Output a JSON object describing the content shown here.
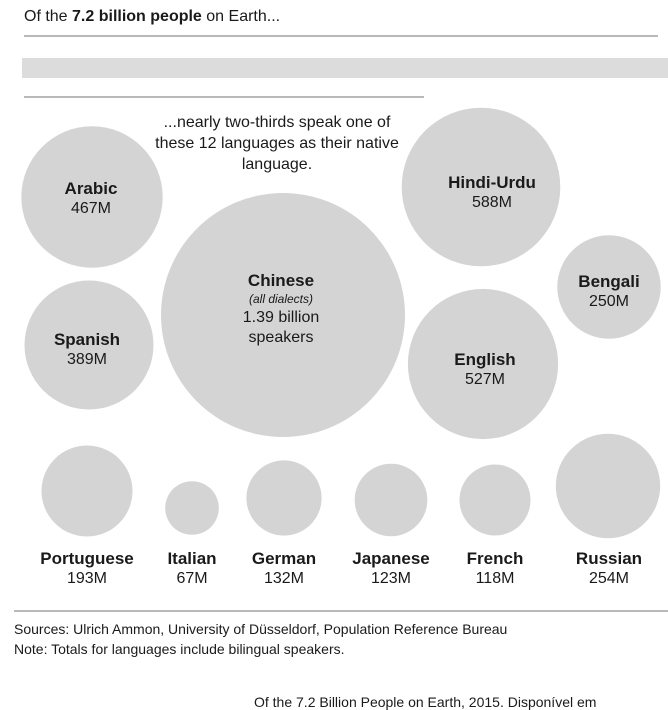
{
  "header": {
    "prefix": "Of the ",
    "highlight": "7.2 billion people",
    "suffix": " on Earth..."
  },
  "subhead": "...nearly two-thirds speak one of these 12 languages as their native language.",
  "colors": {
    "bubble": "#d4d4d4",
    "rule": "#b9b9b9",
    "band": "#dcdcdc",
    "text": "#1a1a1a"
  },
  "chart_data": {
    "type": "bubble",
    "title": "Of the 7.2 billion people on Earth...",
    "subtitle": "...nearly two-thirds speak one of these 12 languages as their native language.",
    "unit": "millions of speakers",
    "series": [
      {
        "language": "Chinese",
        "note": "(all dialects)",
        "value": 1390,
        "label": "1.39 billion",
        "label2": "speakers"
      },
      {
        "language": "Hindi-Urdu",
        "value": 588,
        "label": "588M"
      },
      {
        "language": "English",
        "value": 527,
        "label": "527M"
      },
      {
        "language": "Arabic",
        "value": 467,
        "label": "467M"
      },
      {
        "language": "Spanish",
        "value": 389,
        "label": "389M"
      },
      {
        "language": "Russian",
        "value": 254,
        "label": "254M"
      },
      {
        "language": "Bengali",
        "value": 250,
        "label": "250M"
      },
      {
        "language": "Portuguese",
        "value": 193,
        "label": "193M"
      },
      {
        "language": "German",
        "value": 132,
        "label": "132M"
      },
      {
        "language": "Japanese",
        "value": 123,
        "label": "123M"
      },
      {
        "language": "French",
        "value": 118,
        "label": "118M"
      },
      {
        "language": "Italian",
        "value": 67,
        "label": "67M"
      }
    ]
  },
  "footer": {
    "sources": "Sources: Ulrich Ammon, University of Düsseldorf, Population Reference Bureau",
    "note": "Note: Totals for languages include bilingual speakers.",
    "credit": "Of the 7.2 Billion People on Earth, 2015. Disponível em"
  }
}
